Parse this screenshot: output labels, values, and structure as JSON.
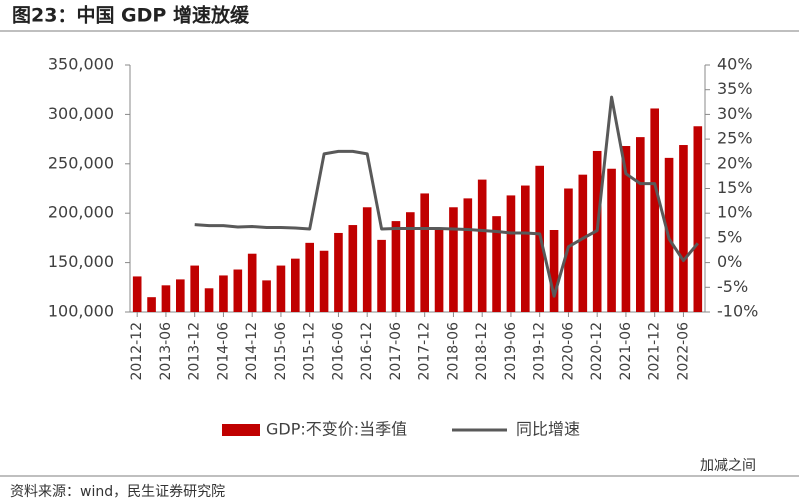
{
  "header": {
    "title": "图23：中国 GDP 增速放缓"
  },
  "chart_data": {
    "type": "bar_line",
    "categories": [
      "2012-12",
      null,
      "2013-06",
      null,
      "2013-12",
      null,
      "2014-06",
      null,
      "2014-12",
      null,
      "2015-06",
      null,
      "2015-12",
      null,
      "2016-06",
      null,
      "2016-12",
      null,
      "2017-06",
      null,
      "2017-12",
      null,
      "2018-06",
      null,
      "2018-12",
      null,
      "2019-06",
      null,
      "2019-12",
      null,
      "2020-06",
      null,
      "2020-12",
      null,
      "2021-06",
      null,
      "2021-12",
      null,
      "2022-06",
      null
    ],
    "series": [
      {
        "name": "GDP:不变价:当季值",
        "type": "bar",
        "color": "#c00000",
        "values": [
          136000,
          115000,
          127000,
          133000,
          147000,
          124000,
          137000,
          143000,
          159000,
          132000,
          147000,
          154000,
          170000,
          162000,
          180000,
          188000,
          206000,
          173000,
          192000,
          201000,
          220000,
          185000,
          206000,
          215000,
          234000,
          197000,
          218000,
          228000,
          248000,
          183000,
          225000,
          239000,
          263000,
          245000,
          268000,
          277000,
          306000,
          256000,
          269000,
          288000
        ]
      },
      {
        "name": "同比增速",
        "type": "line",
        "axis": "y2",
        "color": "#595959",
        "values": [
          null,
          null,
          null,
          null,
          7.7,
          7.5,
          7.5,
          7.2,
          7.3,
          7.1,
          7.1,
          7.0,
          6.8,
          22.0,
          22.5,
          22.5,
          22.0,
          6.8,
          6.9,
          6.9,
          6.9,
          6.9,
          6.8,
          6.7,
          6.5,
          6.3,
          6.0,
          6.0,
          5.8,
          -6.8,
          3.2,
          4.9,
          6.5,
          33.5,
          18.0,
          16.0,
          16.0,
          4.8,
          0.4,
          3.9
        ]
      }
    ],
    "ylim": [
      100000,
      350000
    ],
    "yticks": [
      {
        "value": 100000,
        "label": "100,000"
      },
      {
        "value": 150000,
        "label": "150,000"
      },
      {
        "value": 200000,
        "label": "200,000"
      },
      {
        "value": 250000,
        "label": "250,000"
      },
      {
        "value": 300000,
        "label": "300,000"
      },
      {
        "value": 350000,
        "label": "350,000"
      }
    ],
    "y2lim": [
      -10,
      40
    ],
    "y2ticks": [
      {
        "value": -10,
        "label": "-10%"
      },
      {
        "value": -5,
        "label": "-5%"
      },
      {
        "value": 0,
        "label": "0%"
      },
      {
        "value": 5,
        "label": "5%"
      },
      {
        "value": 10,
        "label": "10%"
      },
      {
        "value": 15,
        "label": "15%"
      },
      {
        "value": 20,
        "label": "20%"
      },
      {
        "value": 25,
        "label": "25%"
      },
      {
        "value": 30,
        "label": "30%"
      },
      {
        "value": 35,
        "label": "35%"
      },
      {
        "value": 40,
        "label": "40%"
      }
    ],
    "legend": "bottom"
  },
  "footer": {
    "source": "资料来源：wind，民生证券研究院",
    "watermark": "加减之间"
  }
}
